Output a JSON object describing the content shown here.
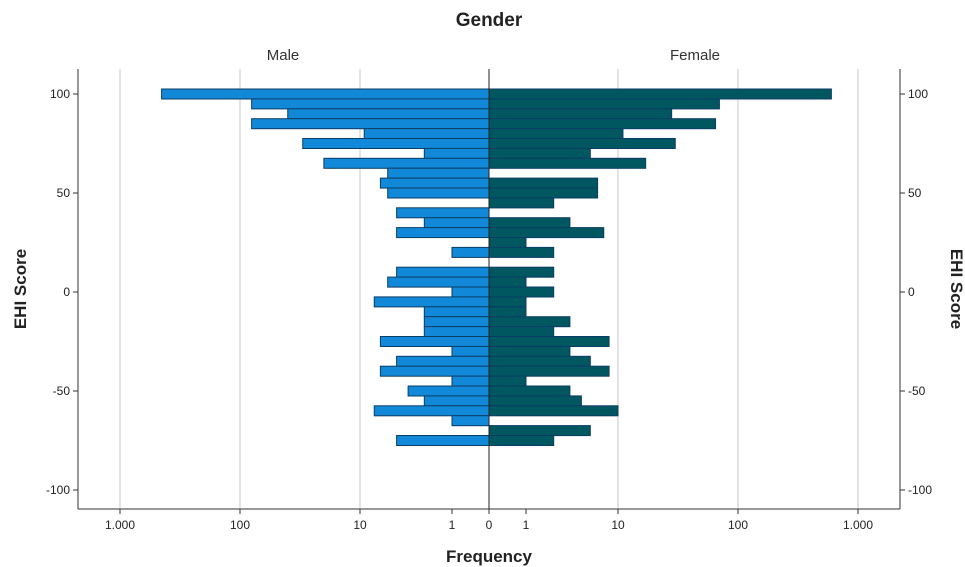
{
  "chart_data": {
    "type": "bar",
    "orientation": "horizontal",
    "layout": "population-pyramid",
    "title": "Gender",
    "xlabel": "Frequency",
    "ylabel": "EHI Score",
    "y_ticks": [
      100,
      50,
      0,
      -50,
      -100
    ],
    "y_range": [
      -110,
      110
    ],
    "x_scale": "log",
    "x_ticks_left": [
      "1.000",
      "100",
      "10",
      "1",
      "0"
    ],
    "x_ticks_right": [
      "0",
      "1",
      "10",
      "100",
      "1.000"
    ],
    "grid_values": [
      1000,
      100,
      10
    ],
    "categories": [
      100,
      95,
      90,
      85,
      80,
      75,
      70,
      65,
      60,
      55,
      50,
      45,
      40,
      35,
      30,
      25,
      20,
      15,
      10,
      5,
      0,
      -5,
      -10,
      -15,
      -20,
      -25,
      -30,
      -35,
      -40,
      -45,
      -50,
      -55,
      -60,
      -65,
      -70,
      -75,
      -80,
      -85,
      -90,
      -95,
      -100
    ],
    "series": [
      {
        "name": "Male",
        "color": "#1189D8",
        "values": [
          450,
          80,
          40,
          80,
          9,
          30,
          2,
          20,
          5,
          6,
          5,
          0,
          4,
          2,
          4,
          0,
          1,
          0,
          4,
          5,
          1,
          7,
          2,
          2,
          2,
          6,
          1,
          4,
          6,
          1,
          3,
          2,
          7,
          1,
          0,
          4,
          0,
          0,
          0,
          0,
          0
        ]
      },
      {
        "name": "Female",
        "color": "#00575F",
        "values": [
          600,
          70,
          28,
          65,
          11,
          30,
          5,
          17,
          0,
          6,
          6,
          2,
          0,
          3,
          7,
          1,
          2,
          0,
          2,
          1,
          2,
          1,
          1,
          3,
          2,
          8,
          3,
          5,
          8,
          1,
          3,
          4,
          10,
          0,
          5,
          2,
          0,
          0,
          0,
          0,
          0
        ]
      }
    ]
  }
}
